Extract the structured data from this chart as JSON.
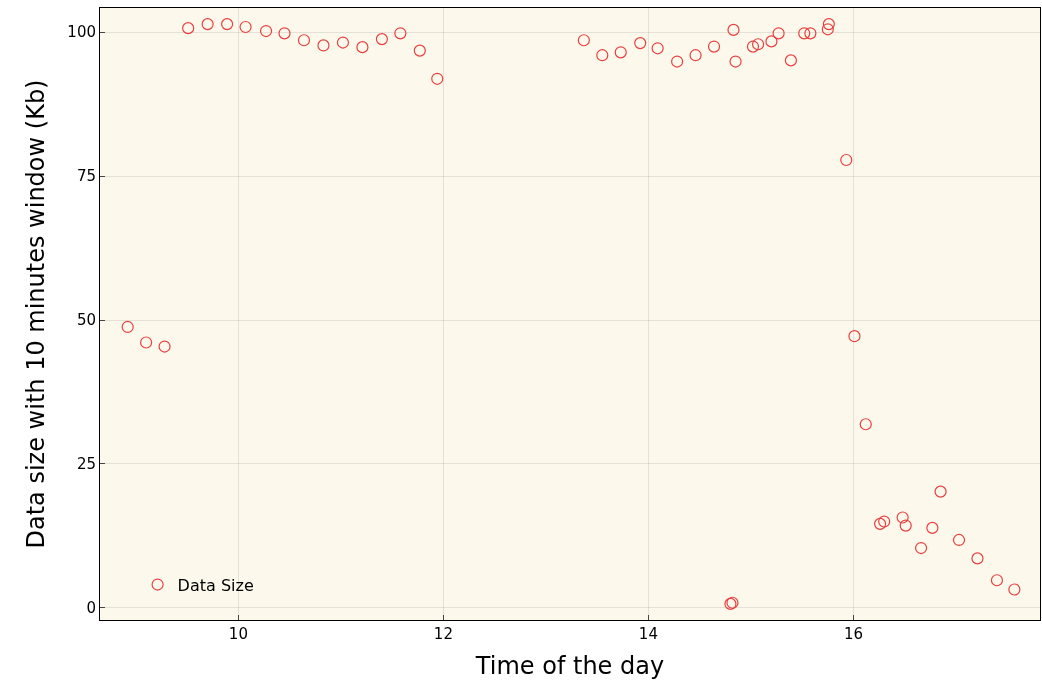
{
  "chart_data": {
    "type": "scatter",
    "xlabel": "Time of the day",
    "ylabel": "Data size with 10 minutes window (Kb)",
    "xlim": [
      8.65,
      17.82
    ],
    "xticks": [
      10,
      12,
      14,
      16
    ],
    "ylim": [
      -2.1,
      104.2
    ],
    "yticks": [
      0,
      25,
      50,
      75,
      100
    ],
    "grid": true,
    "legend": "bottom left",
    "marker": "circle",
    "series": [
      {
        "name": "Data Size",
        "color": "#e8403f",
        "x": [
          8.92,
          9.1,
          9.28,
          9.51,
          9.7,
          9.89,
          10.07,
          10.27,
          10.45,
          10.64,
          10.83,
          11.02,
          11.21,
          11.4,
          11.58,
          11.77,
          11.94,
          13.37,
          13.55,
          13.73,
          13.92,
          14.09,
          14.28,
          14.46,
          14.64,
          14.8,
          14.82,
          14.83,
          14.85,
          15.02,
          15.07,
          15.2,
          15.27,
          15.39,
          15.52,
          15.58,
          15.75,
          15.76,
          15.93,
          16.01,
          16.12,
          16.26,
          16.3,
          16.48,
          16.51,
          16.66,
          16.77,
          16.85,
          17.03,
          17.21,
          17.4,
          17.57
        ],
        "values": [
          48.8,
          46.1,
          45.4,
          100.7,
          101.4,
          101.4,
          100.9,
          100.2,
          99.8,
          98.6,
          97.7,
          98.2,
          97.4,
          98.8,
          99.8,
          96.8,
          91.9,
          98.6,
          96.0,
          96.5,
          98.1,
          97.2,
          94.9,
          96.0,
          97.5,
          0.7,
          0.9,
          100.4,
          94.9,
          97.5,
          97.9,
          98.4,
          99.8,
          95.1,
          99.8,
          99.8,
          100.5,
          101.4,
          77.8,
          47.2,
          31.9,
          14.6,
          15.0,
          15.7,
          14.3,
          10.4,
          13.9,
          20.2,
          11.8,
          8.6,
          4.8,
          3.2
        ]
      }
    ]
  }
}
